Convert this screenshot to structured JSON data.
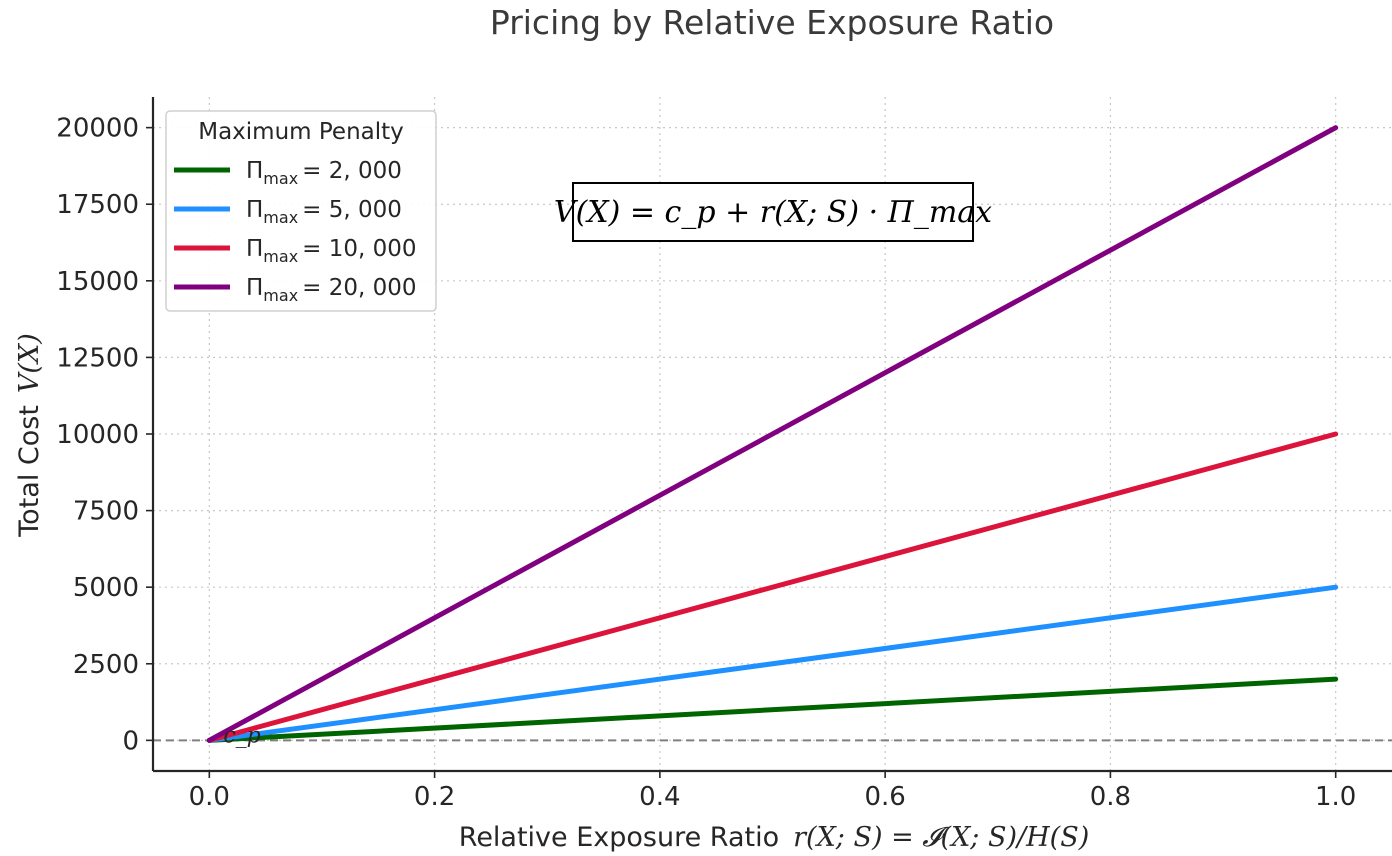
{
  "chart_data": {
    "type": "line",
    "title": "Pricing by Relative Exposure Ratio",
    "xlabel": "Relative Exposure Ratio",
    "xlabel_formula": "r(X; S) = 𝓘(X; S)/H(S)",
    "ylabel": "Total Cost",
    "ylabel_formula": "V(X)",
    "xlim": [
      -0.05,
      1.05
    ],
    "ylim": [
      -1000,
      21000
    ],
    "xticks": [
      0.0,
      0.2,
      0.4,
      0.6,
      0.8,
      1.0
    ],
    "xtick_labels": [
      "0.0",
      "0.2",
      "0.4",
      "0.6",
      "0.8",
      "1.0"
    ],
    "yticks": [
      0,
      2500,
      5000,
      7500,
      10000,
      12500,
      15000,
      17500,
      20000
    ],
    "ytick_labels": [
      "0",
      "2500",
      "5000",
      "7500",
      "10000",
      "12500",
      "15000",
      "17500",
      "20000"
    ],
    "grid": true,
    "legend": {
      "title": "Maximum Penalty",
      "placement": "top-left"
    },
    "x": [
      0.0,
      1.0
    ],
    "series": [
      {
        "name": "Π_max = 2,000",
        "symbol": "Π",
        "sub": "max",
        "rhs": "= 2, 000",
        "color": "#006400",
        "values": [
          0,
          2000
        ]
      },
      {
        "name": "Π_max = 5,000",
        "symbol": "Π",
        "sub": "max",
        "rhs": "= 5, 000",
        "color": "#1E90FF",
        "values": [
          0,
          5000
        ]
      },
      {
        "name": "Π_max = 10,000",
        "symbol": "Π",
        "sub": "max",
        "rhs": "= 10, 000",
        "color": "#DC143C",
        "values": [
          0,
          10000
        ]
      },
      {
        "name": "Π_max = 20,000",
        "symbol": "Π",
        "sub": "max",
        "rhs": "= 20, 000",
        "color": "#800080",
        "values": [
          0,
          20000
        ]
      }
    ],
    "baseline": {
      "y": 0,
      "style": "dashed",
      "color": "#808080"
    },
    "annotations": [
      {
        "text": "V(X) = c_p + r(X; S) · Π_max",
        "placement": "upper-center, boxed"
      },
      {
        "text": "c_p",
        "x": 0.0,
        "y": 0
      }
    ]
  }
}
